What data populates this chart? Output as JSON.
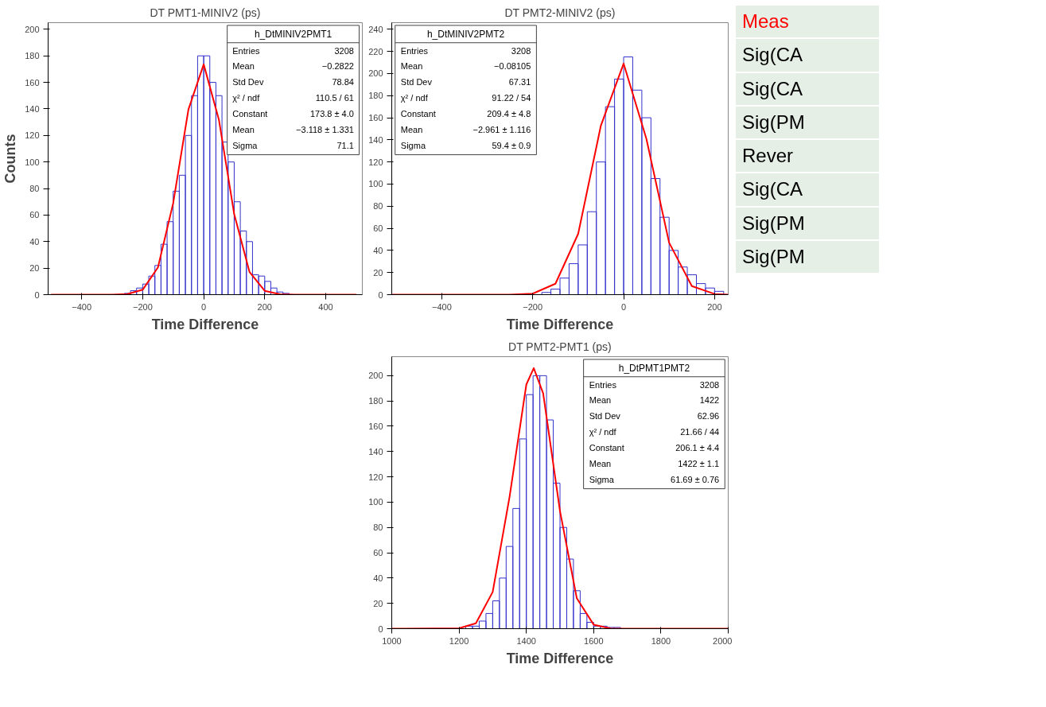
{
  "chart_data": [
    {
      "type": "histogram",
      "title": "DT PMT1-MINIV2 (ps)",
      "xlabel": "Time Difference",
      "ylabel": "Counts",
      "color": "#3333cc",
      "bins": [
        -260,
        -240,
        -220,
        -200,
        -180,
        -160,
        -140,
        -120,
        -100,
        -80,
        -60,
        -40,
        -20,
        0,
        20,
        40,
        60,
        80,
        100,
        120,
        140,
        160,
        180,
        200,
        220,
        240,
        260,
        280
      ],
      "values": [
        1,
        3,
        5,
        8,
        14,
        22,
        38,
        55,
        78,
        90,
        120,
        150,
        180,
        180,
        160,
        150,
        115,
        100,
        70,
        48,
        40,
        15,
        14,
        10,
        5,
        2,
        1
      ],
      "series": [
        {
          "type": "line",
          "color": "#ff0000",
          "x": [
            -500,
            -300,
            -250,
            -200,
            -150,
            -100,
            -50,
            0,
            50,
            100,
            150,
            200,
            250,
            300,
            500
          ],
          "values": [
            0,
            0,
            0.4,
            3.7,
            20.5,
            69,
            139.6,
            173.6,
            131.7,
            60.7,
            17.2,
            2.9,
            0.3,
            0,
            0
          ]
        }
      ],
      "xlim": [
        -510,
        520
      ],
      "ylim": [
        0,
        205
      ],
      "xticks": [
        -400,
        -200,
        0,
        200,
        400
      ],
      "yticks": [
        0,
        20,
        40,
        60,
        80,
        100,
        120,
        140,
        160,
        180,
        200
      ],
      "grid": false,
      "annotations": [
        "h_DtMINIV2PMT1",
        "Entries",
        "3208",
        "Mean",
        "−0.2822",
        "Std Dev",
        "78.84",
        "χ² / ndf",
        "110.5 / 61",
        "Constant",
        "173.8 ± 4.0",
        "Mean",
        "−3.118 ± 1.331",
        "Sigma",
        "71.1"
      ]
    },
    {
      "type": "histogram",
      "title": "DT PMT2-MINIV2 (ps)",
      "xlabel": "Time Difference",
      "color": "#3333cc",
      "bins": [
        -180,
        -160,
        -140,
        -120,
        -100,
        -80,
        -60,
        -40,
        -20,
        0,
        20,
        40,
        60,
        80,
        100,
        120,
        140,
        160,
        180,
        200,
        220
      ],
      "values": [
        2,
        5,
        15,
        28,
        45,
        75,
        120,
        170,
        195,
        215,
        185,
        160,
        105,
        70,
        40,
        25,
        18,
        10,
        6,
        3
      ],
      "series": [
        {
          "type": "line",
          "color": "#ff0000",
          "x": [
            -510,
            -250,
            -200,
            -150,
            -100,
            -50,
            0,
            50,
            100,
            150,
            200,
            230
          ],
          "values": [
            0,
            0,
            0.9,
            9.9,
            55,
            153,
            209,
            141,
            47,
            7.7,
            0.6,
            0
          ]
        }
      ],
      "xlim": [
        -510,
        230
      ],
      "ylim": [
        0,
        246
      ],
      "xticks": [
        -400,
        -200,
        0,
        200
      ],
      "yticks": [
        0,
        20,
        40,
        60,
        80,
        100,
        120,
        140,
        160,
        180,
        200,
        220,
        240
      ],
      "grid": false,
      "annotations": [
        "h_DtMINIV2PMT2",
        "Entries",
        "3208",
        "Mean",
        "−0.08105",
        "Std Dev",
        "67.31",
        "χ² / ndf",
        "91.22 / 54",
        "Constant",
        "209.4 ± 4.8",
        "Mean",
        "−2.961 ± 1.116",
        "Sigma",
        "59.4 ± 0.9"
      ]
    },
    {
      "type": "other",
      "colors": [
        "#ff0000",
        "#000000",
        "#000000",
        "#000000",
        "#000000",
        "#000000",
        "#000000",
        "#000000"
      ],
      "annotations": [
        "Meas",
        "Sig(CA",
        "Sig(CA",
        "Sig(PM",
        "Rever",
        "Sig(CA",
        "Sig(PM",
        "Sig(PM"
      ]
    },
    {
      "type": "histogram",
      "title": "DT PMT2-PMT1 (ps)",
      "xlabel": "Time Difference",
      "color": "#3333cc",
      "bins": [
        1220,
        1240,
        1260,
        1280,
        1300,
        1320,
        1340,
        1360,
        1380,
        1400,
        1420,
        1440,
        1460,
        1480,
        1500,
        1520,
        1540,
        1560,
        1580,
        1600,
        1620,
        1640,
        1660,
        1680
      ],
      "values": [
        2,
        2,
        6,
        12,
        22,
        40,
        65,
        95,
        150,
        185,
        200,
        200,
        165,
        115,
        80,
        55,
        30,
        12,
        5,
        2,
        2,
        1,
        1
      ],
      "series": [
        {
          "type": "line",
          "color": "#ff0000",
          "x": [
            1000,
            1200,
            1250,
            1300,
            1350,
            1400,
            1422,
            1450,
            1500,
            1550,
            1600,
            1650,
            2000
          ],
          "values": [
            0,
            0.3,
            4.2,
            29,
            104,
            193,
            206,
            186,
            93,
            24,
            3.2,
            0.2,
            0
          ]
        }
      ],
      "xlim": [
        1000,
        2000
      ],
      "ylim": [
        0,
        215
      ],
      "xticks": [
        1000,
        1200,
        1400,
        1600,
        1800,
        2000
      ],
      "yticks": [
        0,
        20,
        40,
        60,
        80,
        100,
        120,
        140,
        160,
        180,
        200
      ],
      "grid": false,
      "annotations": [
        "h_DtPMT1PMT2",
        "Entries",
        "3208",
        "Mean",
        "1422",
        "Std Dev",
        "62.96",
        "χ² / ndf",
        "21.66 / 44",
        "Constant",
        "206.1 ± 4.4",
        "Mean",
        "1422 ± 1.1",
        "Sigma",
        "61.69 ± 0.76"
      ]
    }
  ]
}
